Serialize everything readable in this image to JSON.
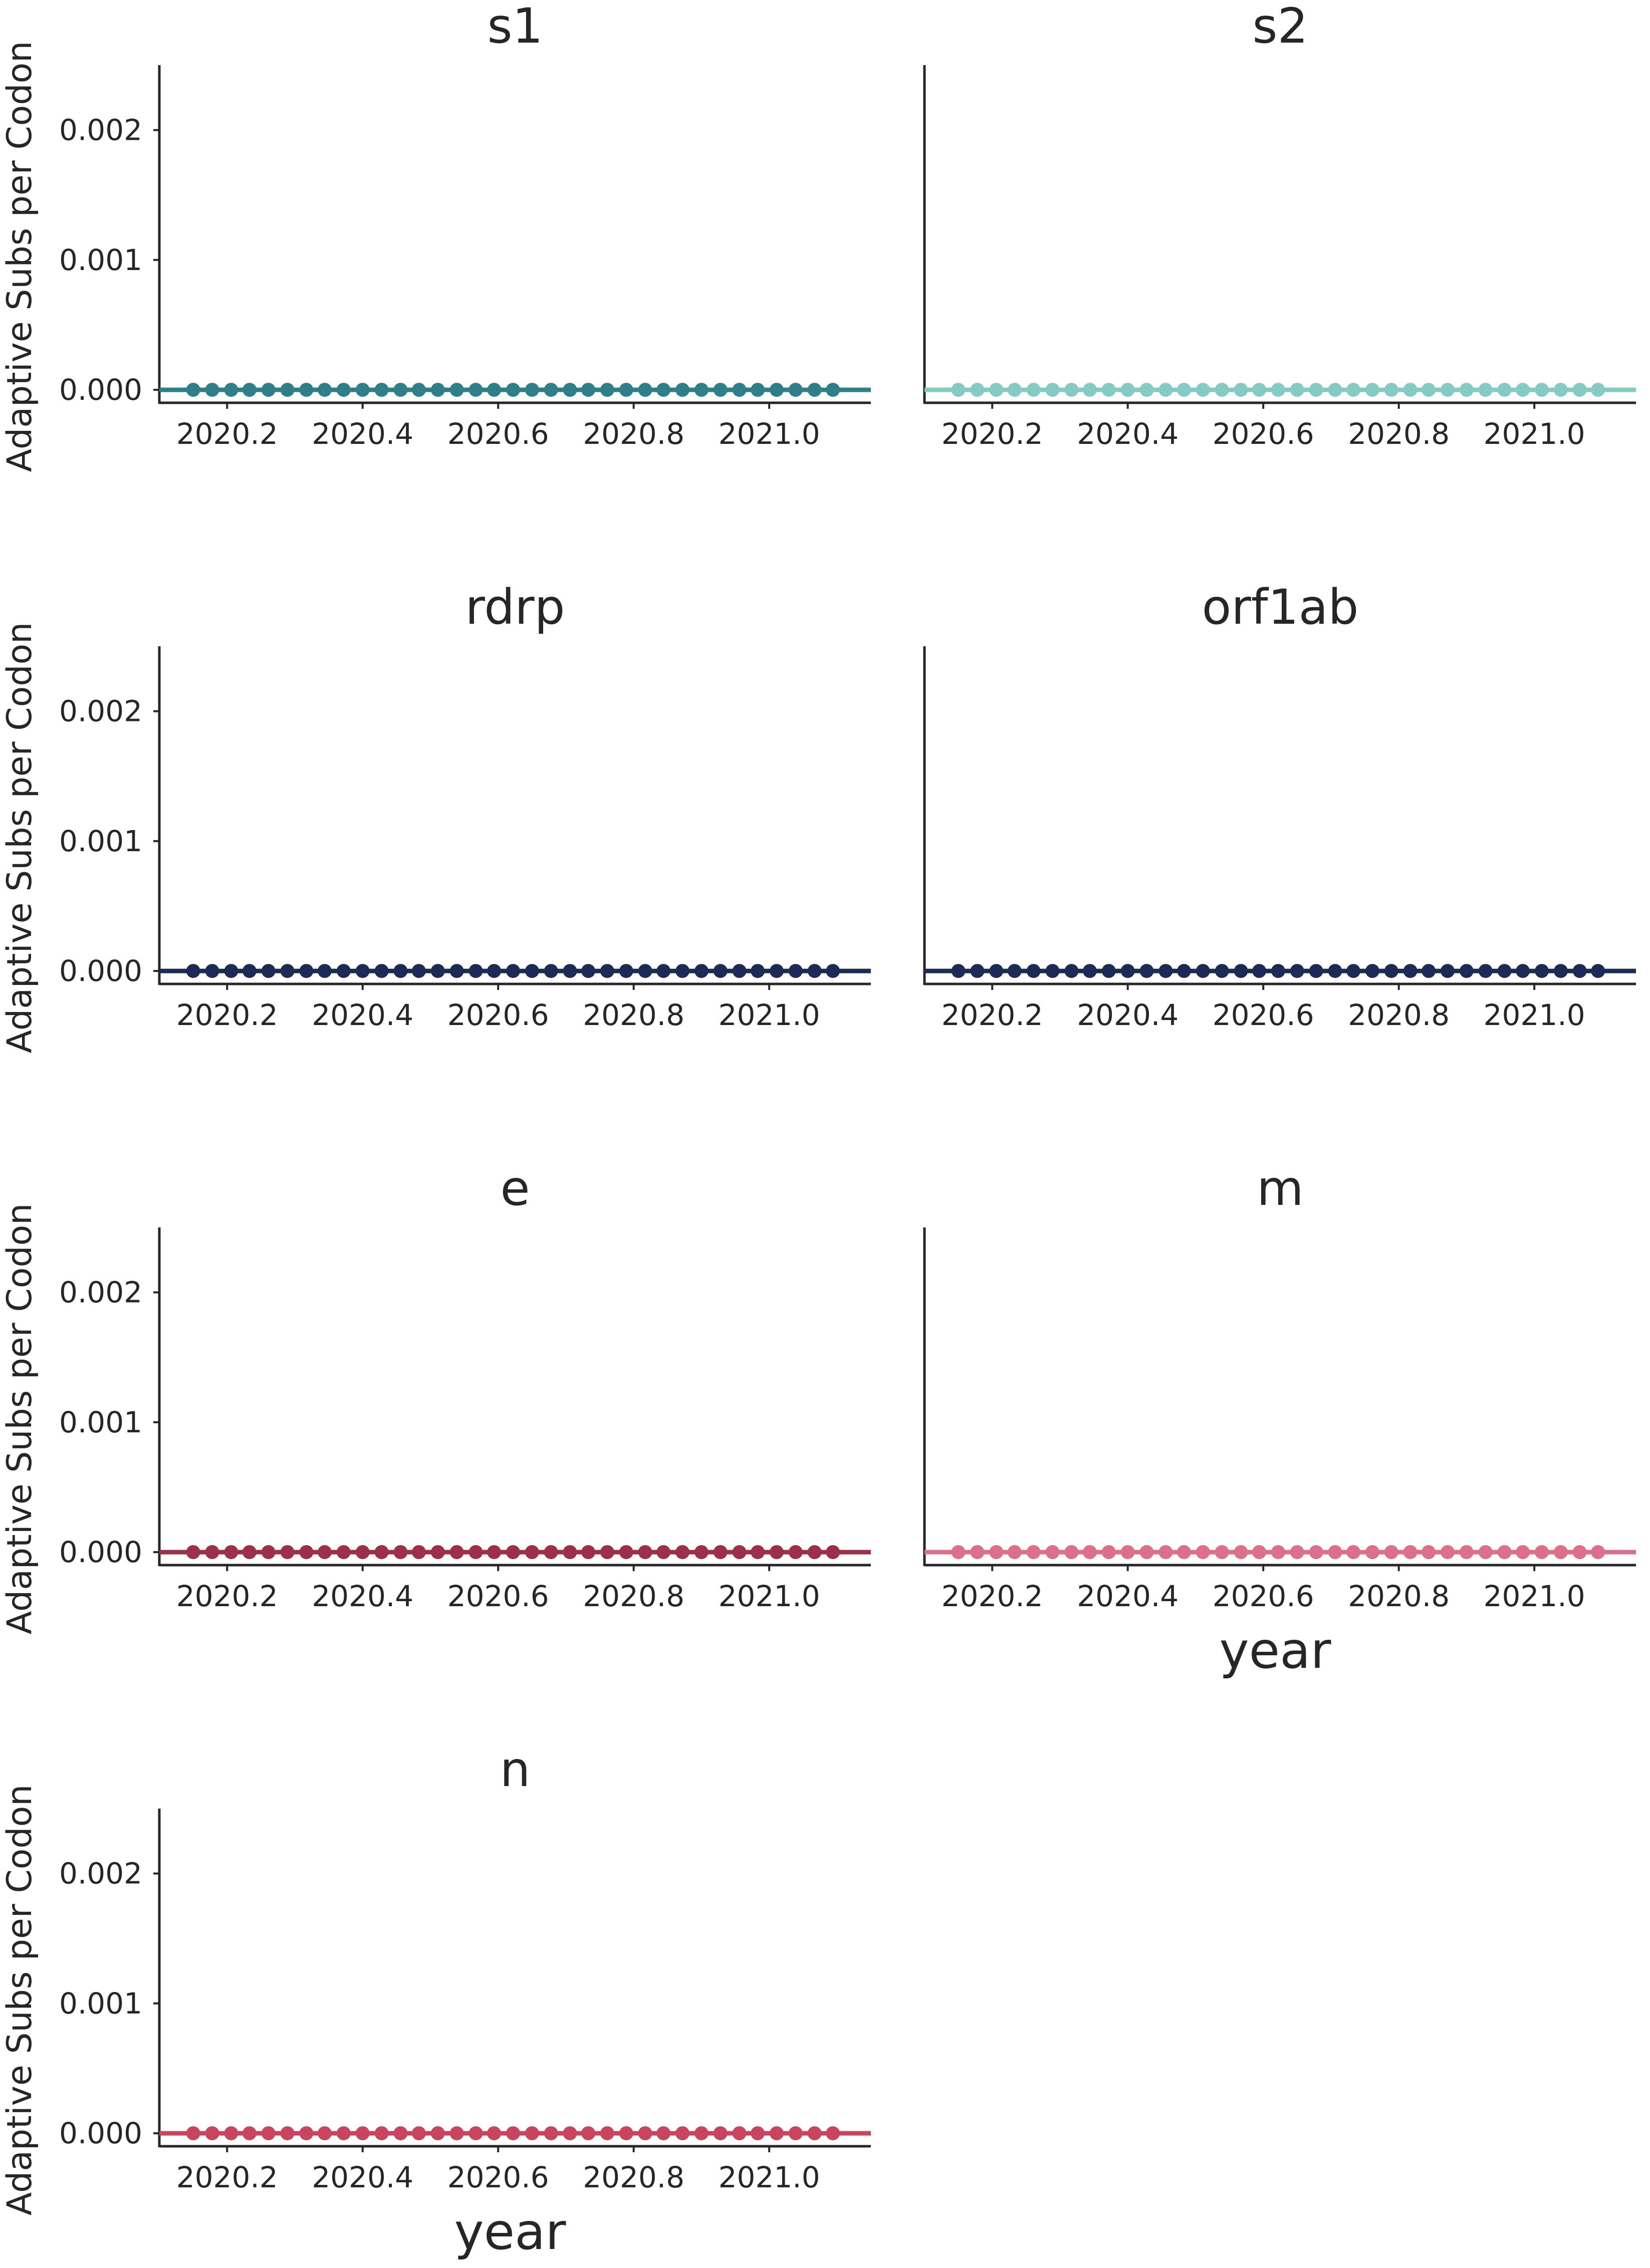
{
  "chart_data": [
    {
      "type": "line",
      "title": "s1",
      "ylabel": "Adaptive Subs per Codon",
      "xlabel": "",
      "color": "#2e7f89",
      "xlim": [
        2020.1,
        2021.15
      ],
      "ylim": [
        -0.0001,
        0.0025
      ],
      "xticks": [
        "2020.2",
        "2020.4",
        "2020.6",
        "2020.8",
        "2021.0"
      ],
      "yticks": [
        "0.000",
        "0.001",
        "0.002"
      ],
      "series": [
        {
          "x": [
            2020.15,
            2020.178,
            2020.206,
            2020.233,
            2020.261,
            2020.289,
            2020.317,
            2020.344,
            2020.372,
            2020.4,
            2020.428,
            2020.456,
            2020.483,
            2020.511,
            2020.539,
            2020.567,
            2020.594,
            2020.622,
            2020.65,
            2020.678,
            2020.706,
            2020.733,
            2020.761,
            2020.789,
            2020.817,
            2020.844,
            2020.872,
            2020.9,
            2020.928,
            2020.956,
            2020.983,
            2021.011,
            2021.039,
            2021.067,
            2021.094
          ],
          "y": [
            0,
            0,
            0,
            0,
            0,
            0,
            0,
            0,
            0,
            0,
            0,
            0,
            0,
            0,
            0,
            0,
            0,
            0,
            0,
            0,
            0,
            0,
            0,
            0,
            0,
            0,
            0,
            0,
            0,
            0,
            0,
            0,
            0,
            0,
            0
          ]
        }
      ]
    },
    {
      "type": "line",
      "title": "s2",
      "ylabel": "",
      "xlabel": "",
      "color": "#86cbc3",
      "xlim": [
        2020.1,
        2021.15
      ],
      "ylim": [
        -0.0001,
        0.0025
      ],
      "xticks": [
        "2020.2",
        "2020.4",
        "2020.6",
        "2020.8",
        "2021.0"
      ],
      "yticks": [],
      "series": [
        {
          "x": [
            2020.15,
            2020.178,
            2020.206,
            2020.233,
            2020.261,
            2020.289,
            2020.317,
            2020.344,
            2020.372,
            2020.4,
            2020.428,
            2020.456,
            2020.483,
            2020.511,
            2020.539,
            2020.567,
            2020.594,
            2020.622,
            2020.65,
            2020.678,
            2020.706,
            2020.733,
            2020.761,
            2020.789,
            2020.817,
            2020.844,
            2020.872,
            2020.9,
            2020.928,
            2020.956,
            2020.983,
            2021.011,
            2021.039,
            2021.067,
            2021.094
          ],
          "y": [
            0,
            0,
            0,
            0,
            0,
            0,
            0,
            0,
            0,
            0,
            0,
            0,
            0,
            0,
            0,
            0,
            0,
            0,
            0,
            0,
            0,
            0,
            0,
            0,
            0,
            0,
            0,
            0,
            0,
            0,
            0,
            0,
            0,
            0,
            0
          ]
        }
      ]
    },
    {
      "type": "line",
      "title": "rdrp",
      "ylabel": "Adaptive Subs per Codon",
      "xlabel": "",
      "color": "#1c2a56",
      "xlim": [
        2020.1,
        2021.15
      ],
      "ylim": [
        -0.0001,
        0.0025
      ],
      "xticks": [
        "2020.2",
        "2020.4",
        "2020.6",
        "2020.8",
        "2021.0"
      ],
      "yticks": [
        "0.000",
        "0.001",
        "0.002"
      ],
      "series": [
        {
          "x": [
            2020.15,
            2020.178,
            2020.206,
            2020.233,
            2020.261,
            2020.289,
            2020.317,
            2020.344,
            2020.372,
            2020.4,
            2020.428,
            2020.456,
            2020.483,
            2020.511,
            2020.539,
            2020.567,
            2020.594,
            2020.622,
            2020.65,
            2020.678,
            2020.706,
            2020.733,
            2020.761,
            2020.789,
            2020.817,
            2020.844,
            2020.872,
            2020.9,
            2020.928,
            2020.956,
            2020.983,
            2021.011,
            2021.039,
            2021.067,
            2021.094
          ],
          "y": [
            0,
            0,
            0,
            0,
            0,
            0,
            0,
            0,
            0,
            0,
            0,
            0,
            0,
            0,
            0,
            0,
            0,
            0,
            0,
            0,
            0,
            0,
            0,
            0,
            0,
            0,
            0,
            0,
            0,
            0,
            0,
            0,
            0,
            0,
            0
          ]
        }
      ]
    },
    {
      "type": "line",
      "title": "orf1ab",
      "ylabel": "",
      "xlabel": "",
      "color": "#1c2a56",
      "xlim": [
        2020.1,
        2021.15
      ],
      "ylim": [
        -0.0001,
        0.0025
      ],
      "xticks": [
        "2020.2",
        "2020.4",
        "2020.6",
        "2020.8",
        "2021.0"
      ],
      "yticks": [],
      "series": [
        {
          "x": [
            2020.15,
            2020.178,
            2020.206,
            2020.233,
            2020.261,
            2020.289,
            2020.317,
            2020.344,
            2020.372,
            2020.4,
            2020.428,
            2020.456,
            2020.483,
            2020.511,
            2020.539,
            2020.567,
            2020.594,
            2020.622,
            2020.65,
            2020.678,
            2020.706,
            2020.733,
            2020.761,
            2020.789,
            2020.817,
            2020.844,
            2020.872,
            2020.9,
            2020.928,
            2020.956,
            2020.983,
            2021.011,
            2021.039,
            2021.067,
            2021.094
          ],
          "y": [
            0,
            0,
            0,
            0,
            0,
            0,
            0,
            0,
            0,
            0,
            0,
            0,
            0,
            0,
            0,
            0,
            0,
            0,
            0,
            0,
            0,
            0,
            0,
            0,
            0,
            0,
            0,
            0,
            0,
            0,
            0,
            0,
            0,
            0,
            0
          ]
        }
      ]
    },
    {
      "type": "line",
      "title": "e",
      "ylabel": "Adaptive Subs per Codon",
      "xlabel": "",
      "color": "#9e2f4b",
      "xlim": [
        2020.1,
        2021.15
      ],
      "ylim": [
        -0.0001,
        0.0025
      ],
      "xticks": [
        "2020.2",
        "2020.4",
        "2020.6",
        "2020.8",
        "2021.0"
      ],
      "yticks": [
        "0.000",
        "0.001",
        "0.002"
      ],
      "series": [
        {
          "x": [
            2020.15,
            2020.178,
            2020.206,
            2020.233,
            2020.261,
            2020.289,
            2020.317,
            2020.344,
            2020.372,
            2020.4,
            2020.428,
            2020.456,
            2020.483,
            2020.511,
            2020.539,
            2020.567,
            2020.594,
            2020.622,
            2020.65,
            2020.678,
            2020.706,
            2020.733,
            2020.761,
            2020.789,
            2020.817,
            2020.844,
            2020.872,
            2020.9,
            2020.928,
            2020.956,
            2020.983,
            2021.011,
            2021.039,
            2021.067,
            2021.094
          ],
          "y": [
            0,
            0,
            0,
            0,
            0,
            0,
            0,
            0,
            0,
            0,
            0,
            0,
            0,
            0,
            0,
            0,
            0,
            0,
            0,
            0,
            0,
            0,
            0,
            0,
            0,
            0,
            0,
            0,
            0,
            0,
            0,
            0,
            0,
            0,
            0
          ]
        }
      ]
    },
    {
      "type": "line",
      "title": "m",
      "ylabel": "",
      "xlabel": "year",
      "color": "#de6f8c",
      "xlim": [
        2020.1,
        2021.15
      ],
      "ylim": [
        -0.0001,
        0.0025
      ],
      "xticks": [
        "2020.2",
        "2020.4",
        "2020.6",
        "2020.8",
        "2021.0"
      ],
      "yticks": [],
      "series": [
        {
          "x": [
            2020.15,
            2020.178,
            2020.206,
            2020.233,
            2020.261,
            2020.289,
            2020.317,
            2020.344,
            2020.372,
            2020.4,
            2020.428,
            2020.456,
            2020.483,
            2020.511,
            2020.539,
            2020.567,
            2020.594,
            2020.622,
            2020.65,
            2020.678,
            2020.706,
            2020.733,
            2020.761,
            2020.789,
            2020.817,
            2020.844,
            2020.872,
            2020.9,
            2020.928,
            2020.956,
            2020.983,
            2021.011,
            2021.039,
            2021.067,
            2021.094
          ],
          "y": [
            0,
            0,
            0,
            0,
            0,
            0,
            0,
            0,
            0,
            0,
            0,
            0,
            0,
            0,
            0,
            0,
            0,
            0,
            0,
            0,
            0,
            0,
            0,
            0,
            0,
            0,
            0,
            0,
            0,
            0,
            0,
            0,
            0,
            0,
            0
          ]
        }
      ]
    },
    {
      "type": "line",
      "title": "n",
      "ylabel": "Adaptive Subs per Codon",
      "xlabel": "year",
      "color": "#c9445f",
      "xlim": [
        2020.1,
        2021.15
      ],
      "ylim": [
        -0.0001,
        0.0025
      ],
      "xticks": [
        "2020.2",
        "2020.4",
        "2020.6",
        "2020.8",
        "2021.0"
      ],
      "yticks": [
        "0.000",
        "0.001",
        "0.002"
      ],
      "series": [
        {
          "x": [
            2020.15,
            2020.178,
            2020.206,
            2020.233,
            2020.261,
            2020.289,
            2020.317,
            2020.344,
            2020.372,
            2020.4,
            2020.428,
            2020.456,
            2020.483,
            2020.511,
            2020.539,
            2020.567,
            2020.594,
            2020.622,
            2020.65,
            2020.678,
            2020.706,
            2020.733,
            2020.761,
            2020.789,
            2020.817,
            2020.844,
            2020.872,
            2020.9,
            2020.928,
            2020.956,
            2020.983,
            2021.011,
            2021.039,
            2021.067,
            2021.094
          ],
          "y": [
            0,
            0,
            0,
            0,
            0,
            0,
            0,
            0,
            0,
            0,
            0,
            0,
            0,
            0,
            0,
            0,
            0,
            0,
            0,
            0,
            0,
            0,
            0,
            0,
            0,
            0,
            0,
            0,
            0,
            0,
            0,
            0,
            0,
            0,
            0
          ]
        }
      ]
    }
  ]
}
